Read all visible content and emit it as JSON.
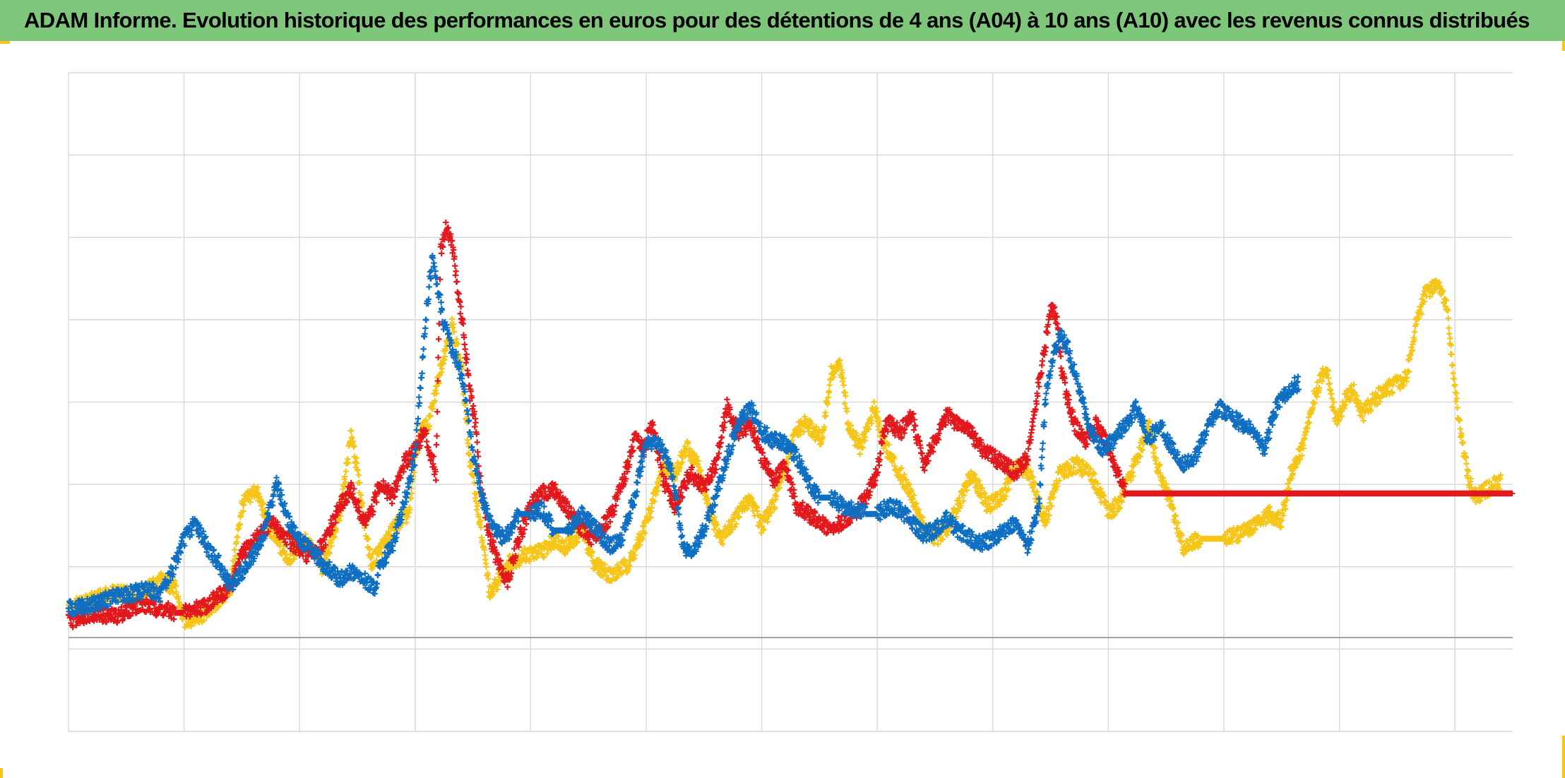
{
  "title": "ADAM Informe. Evolution historique des performances en euros pour des détentions de 4 ans (A04) à 10 ans (A10) avec les revenus connus distribués",
  "colors": {
    "title_bar": "#7dc67a",
    "grid": "#d9d9d9",
    "axis": "#a6a6a6",
    "corner_marks": "#f5c518"
  },
  "chart_data": {
    "type": "scatter",
    "title": "ADAM Informe. Evolution historique des performances en euros pour des détentions de 4 ans (A04) à 10 ans (A10) avec les revenus connus distribués",
    "xlabel": "",
    "ylabel": "",
    "xlim": [
      0,
      1250
    ],
    "ylim": [
      -11.4,
      68.6
    ],
    "grid": true,
    "legend": "none",
    "marker": "plus",
    "zero_line": 0,
    "series": [
      {
        "color": "#f5c518",
        "points": [
          [
            0,
            3.5
          ],
          [
            20,
            4.5
          ],
          [
            40,
            5.5
          ],
          [
            60,
            5
          ],
          [
            80,
            7
          ],
          [
            92,
            6
          ],
          [
            100,
            2
          ],
          [
            120,
            3
          ],
          [
            140,
            6
          ],
          [
            150,
            16
          ],
          [
            162,
            18
          ],
          [
            175,
            13
          ],
          [
            190,
            9.5
          ],
          [
            205,
            12
          ],
          [
            220,
            8.5
          ],
          [
            235,
            15
          ],
          [
            245,
            25
          ],
          [
            252,
            18
          ],
          [
            262,
            9
          ],
          [
            285,
            14
          ],
          [
            295,
            15
          ],
          [
            300,
            22
          ],
          [
            305,
            25
          ],
          [
            312,
            26
          ],
          [
            318,
            30
          ],
          [
            324,
            34
          ],
          [
            332,
            38
          ],
          [
            340,
            33
          ],
          [
            347,
            22
          ],
          [
            355,
            15
          ],
          [
            365,
            5
          ],
          [
            372,
            7
          ],
          [
            380,
            9
          ],
          [
            395,
            10
          ],
          [
            410,
            10.5
          ],
          [
            422,
            12
          ],
          [
            430,
            11
          ],
          [
            445,
            13
          ],
          [
            455,
            9
          ],
          [
            470,
            7.5
          ],
          [
            485,
            9
          ],
          [
            495,
            12
          ],
          [
            505,
            16
          ],
          [
            515,
            21
          ],
          [
            525,
            20
          ],
          [
            535,
            23
          ],
          [
            545,
            21
          ],
          [
            555,
            15
          ],
          [
            565,
            12
          ],
          [
            575,
            14
          ],
          [
            590,
            17
          ],
          [
            600,
            13.5
          ],
          [
            610,
            16
          ],
          [
            620,
            21
          ],
          [
            630,
            25
          ],
          [
            638,
            26
          ],
          [
            645,
            25
          ],
          [
            652,
            24
          ],
          [
            660,
            32
          ],
          [
            668,
            33
          ],
          [
            675,
            26
          ],
          [
            685,
            23
          ],
          [
            698,
            28
          ],
          [
            705,
            24
          ],
          [
            715,
            21
          ],
          [
            728,
            18
          ],
          [
            740,
            13.5
          ],
          [
            750,
            12
          ],
          [
            760,
            13
          ],
          [
            770,
            16
          ],
          [
            782,
            20
          ],
          [
            795,
            16
          ],
          [
            808,
            17
          ],
          [
            820,
            21
          ],
          [
            832,
            20
          ],
          [
            845,
            14
          ],
          [
            858,
            20
          ],
          [
            872,
            21
          ],
          [
            885,
            20
          ],
          [
            900,
            15
          ],
          [
            910,
            16.5
          ],
          [
            920,
            20
          ],
          [
            928,
            23
          ],
          [
            935,
            26
          ],
          [
            942,
            21
          ],
          [
            952,
            17
          ],
          [
            965,
            11
          ],
          [
            980,
            12
          ],
          [
            1000,
            12
          ],
          [
            1020,
            13
          ],
          [
            1040,
            15
          ],
          [
            1050,
            14
          ],
          [
            1058,
            20
          ],
          [
            1068,
            23
          ],
          [
            1078,
            29
          ],
          [
            1088,
            33
          ],
          [
            1098,
            26
          ],
          [
            1105,
            29
          ],
          [
            1112,
            30
          ],
          [
            1120,
            27
          ],
          [
            1130,
            29
          ],
          [
            1140,
            30
          ],
          [
            1150,
            31
          ],
          [
            1158,
            31.5
          ],
          [
            1166,
            38
          ],
          [
            1175,
            42
          ],
          [
            1185,
            43
          ],
          [
            1193,
            40
          ],
          [
            1200,
            30
          ],
          [
            1207,
            23
          ],
          [
            1212,
            19
          ],
          [
            1218,
            17
          ],
          [
            1228,
            18
          ],
          [
            1240,
            19
          ]
        ]
      },
      {
        "color": "#e3181c",
        "points": [
          [
            0,
            2
          ],
          [
            20,
            3
          ],
          [
            40,
            2.5
          ],
          [
            60,
            4
          ],
          [
            80,
            3.5
          ],
          [
            92,
            3
          ],
          [
            100,
            3
          ],
          [
            120,
            4
          ],
          [
            140,
            6
          ],
          [
            150,
            10
          ],
          [
            162,
            12
          ],
          [
            175,
            14
          ],
          [
            190,
            12
          ],
          [
            205,
            10
          ],
          [
            220,
            11
          ],
          [
            235,
            16
          ],
          [
            245,
            18
          ],
          [
            255,
            14
          ],
          [
            262,
            15
          ],
          [
            270,
            19
          ],
          [
            280,
            17
          ],
          [
            290,
            21
          ],
          [
            300,
            23
          ],
          [
            308,
            25
          ],
          [
            318,
            20
          ],
          [
            322,
            47
          ],
          [
            327,
            50
          ],
          [
            332,
            48
          ],
          [
            337,
            42
          ],
          [
            342,
            37
          ],
          [
            347,
            30
          ],
          [
            352,
            26
          ],
          [
            357,
            18
          ],
          [
            365,
            12
          ],
          [
            372,
            9
          ],
          [
            380,
            7
          ],
          [
            390,
            12
          ],
          [
            400,
            16
          ],
          [
            410,
            17.5
          ],
          [
            420,
            18
          ],
          [
            430,
            16
          ],
          [
            440,
            14
          ],
          [
            452,
            12
          ],
          [
            460,
            13
          ],
          [
            470,
            15
          ],
          [
            482,
            20
          ],
          [
            490,
            24
          ],
          [
            498,
            23
          ],
          [
            505,
            26
          ],
          [
            515,
            19
          ],
          [
            525,
            16
          ],
          [
            538,
            20
          ],
          [
            550,
            18
          ],
          [
            560,
            21
          ],
          [
            570,
            28
          ],
          [
            580,
            25
          ],
          [
            590,
            26
          ],
          [
            600,
            22
          ],
          [
            610,
            19
          ],
          [
            620,
            21
          ],
          [
            630,
            16
          ],
          [
            640,
            15
          ],
          [
            650,
            14
          ],
          [
            660,
            13
          ],
          [
            670,
            14
          ],
          [
            680,
            15
          ],
          [
            690,
            17
          ],
          [
            700,
            20
          ],
          [
            705,
            25
          ],
          [
            710,
            26
          ],
          [
            720,
            25
          ],
          [
            730,
            27
          ],
          [
            740,
            21
          ],
          [
            750,
            24
          ],
          [
            760,
            27
          ],
          [
            770,
            26
          ],
          [
            780,
            25
          ],
          [
            790,
            23
          ],
          [
            800,
            22
          ],
          [
            810,
            21
          ],
          [
            820,
            20
          ],
          [
            830,
            22
          ],
          [
            840,
            31
          ],
          [
            845,
            35
          ],
          [
            850,
            40
          ],
          [
            855,
            39
          ],
          [
            860,
            32
          ],
          [
            870,
            26
          ],
          [
            880,
            24
          ],
          [
            890,
            26
          ],
          [
            900,
            23
          ],
          [
            915,
            17.5
          ],
          [
            1250,
            17.5
          ]
        ]
      },
      {
        "color": "#0f6fc2",
        "points": [
          [
            0,
            3.5
          ],
          [
            20,
            4
          ],
          [
            40,
            5
          ],
          [
            60,
            5.5
          ],
          [
            70,
            6
          ],
          [
            80,
            5
          ],
          [
            92,
            9
          ],
          [
            100,
            12
          ],
          [
            110,
            14
          ],
          [
            120,
            11
          ],
          [
            130,
            9
          ],
          [
            140,
            6
          ],
          [
            150,
            8
          ],
          [
            160,
            10
          ],
          [
            170,
            13
          ],
          [
            180,
            19
          ],
          [
            188,
            15
          ],
          [
            198,
            12
          ],
          [
            208,
            11
          ],
          [
            220,
            9
          ],
          [
            235,
            7
          ],
          [
            245,
            8
          ],
          [
            255,
            7
          ],
          [
            265,
            6
          ],
          [
            270,
            9
          ],
          [
            280,
            11
          ],
          [
            290,
            16
          ],
          [
            300,
            22
          ],
          [
            306,
            33
          ],
          [
            310,
            40
          ],
          [
            315,
            46
          ],
          [
            320,
            42
          ],
          [
            325,
            38
          ],
          [
            330,
            36
          ],
          [
            335,
            34
          ],
          [
            342,
            31
          ],
          [
            350,
            22
          ],
          [
            358,
            17
          ],
          [
            368,
            13
          ],
          [
            378,
            12
          ],
          [
            390,
            15
          ],
          [
            400,
            15
          ],
          [
            410,
            15.5
          ],
          [
            420,
            13
          ],
          [
            432,
            13
          ],
          [
            445,
            15
          ],
          [
            458,
            13
          ],
          [
            468,
            11
          ],
          [
            478,
            12
          ],
          [
            490,
            17
          ],
          [
            500,
            24
          ],
          [
            510,
            23.5
          ],
          [
            518,
            22
          ],
          [
            525,
            18
          ],
          [
            532,
            11
          ],
          [
            540,
            10.5
          ],
          [
            550,
            13
          ],
          [
            560,
            17
          ],
          [
            570,
            22
          ],
          [
            580,
            26
          ],
          [
            590,
            28
          ],
          [
            600,
            25
          ],
          [
            610,
            24
          ],
          [
            620,
            23.5
          ],
          [
            630,
            22
          ],
          [
            640,
            19
          ],
          [
            650,
            17
          ],
          [
            660,
            17
          ],
          [
            670,
            16
          ],
          [
            680,
            15.5
          ],
          [
            690,
            15
          ],
          [
            700,
            15
          ],
          [
            710,
            16
          ],
          [
            720,
            15.5
          ],
          [
            730,
            14
          ],
          [
            740,
            12.5
          ],
          [
            750,
            13
          ],
          [
            760,
            14.5
          ],
          [
            770,
            13
          ],
          [
            780,
            12
          ],
          [
            790,
            11.5
          ],
          [
            800,
            12
          ],
          [
            810,
            13
          ],
          [
            820,
            14
          ],
          [
            830,
            11
          ],
          [
            840,
            16
          ],
          [
            845,
            28
          ],
          [
            850,
            33
          ],
          [
            858,
            37
          ],
          [
            865,
            35
          ],
          [
            875,
            30
          ],
          [
            885,
            25
          ],
          [
            895,
            23
          ],
          [
            905,
            24
          ],
          [
            915,
            26
          ],
          [
            925,
            28
          ],
          [
            935,
            24
          ],
          [
            945,
            26
          ],
          [
            955,
            23
          ],
          [
            965,
            21
          ],
          [
            975,
            22
          ],
          [
            985,
            25
          ],
          [
            995,
            28
          ],
          [
            1005,
            27
          ],
          [
            1015,
            26
          ],
          [
            1025,
            25
          ],
          [
            1035,
            23
          ],
          [
            1045,
            28
          ],
          [
            1055,
            30
          ],
          [
            1065,
            31
          ]
        ]
      }
    ]
  }
}
